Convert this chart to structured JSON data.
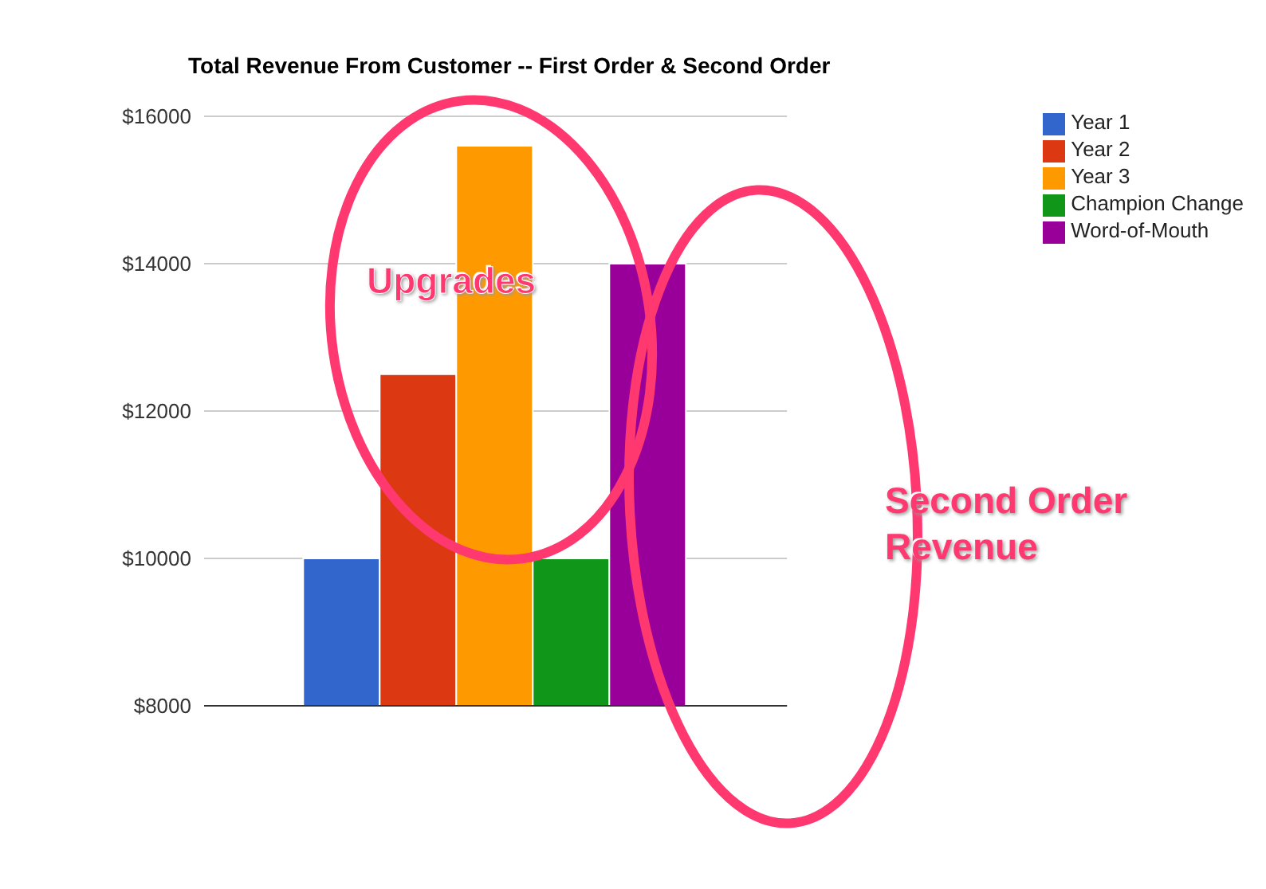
{
  "chart_data": {
    "type": "bar",
    "title": "Total Revenue From Customer -- First Order & Second Order",
    "categories": [
      null
    ],
    "series": [
      {
        "name": "Year 1",
        "color": "#3366cc",
        "values": [
          10000
        ]
      },
      {
        "name": "Year 2",
        "color": "#dc3912",
        "values": [
          12500
        ]
      },
      {
        "name": "Year 3",
        "color": "#ff9900",
        "values": [
          15600
        ]
      },
      {
        "name": "Champion Change",
        "color": "#109618",
        "values": [
          10000
        ]
      },
      {
        "name": "Word-of-Mouth",
        "color": "#990099",
        "values": [
          14000
        ]
      }
    ],
    "ylim": [
      8000,
      16000
    ],
    "yticks": [
      {
        "value": 8000,
        "label": "$8000"
      },
      {
        "value": 10000,
        "label": "$10000"
      },
      {
        "value": 12000,
        "label": "$12000"
      },
      {
        "value": 14000,
        "label": "$14000"
      },
      {
        "value": 16000,
        "label": "$16000"
      }
    ],
    "grid": "y",
    "legend": "top right",
    "annotations": [
      "Upgrades",
      "Second Order Revenue"
    ]
  }
}
